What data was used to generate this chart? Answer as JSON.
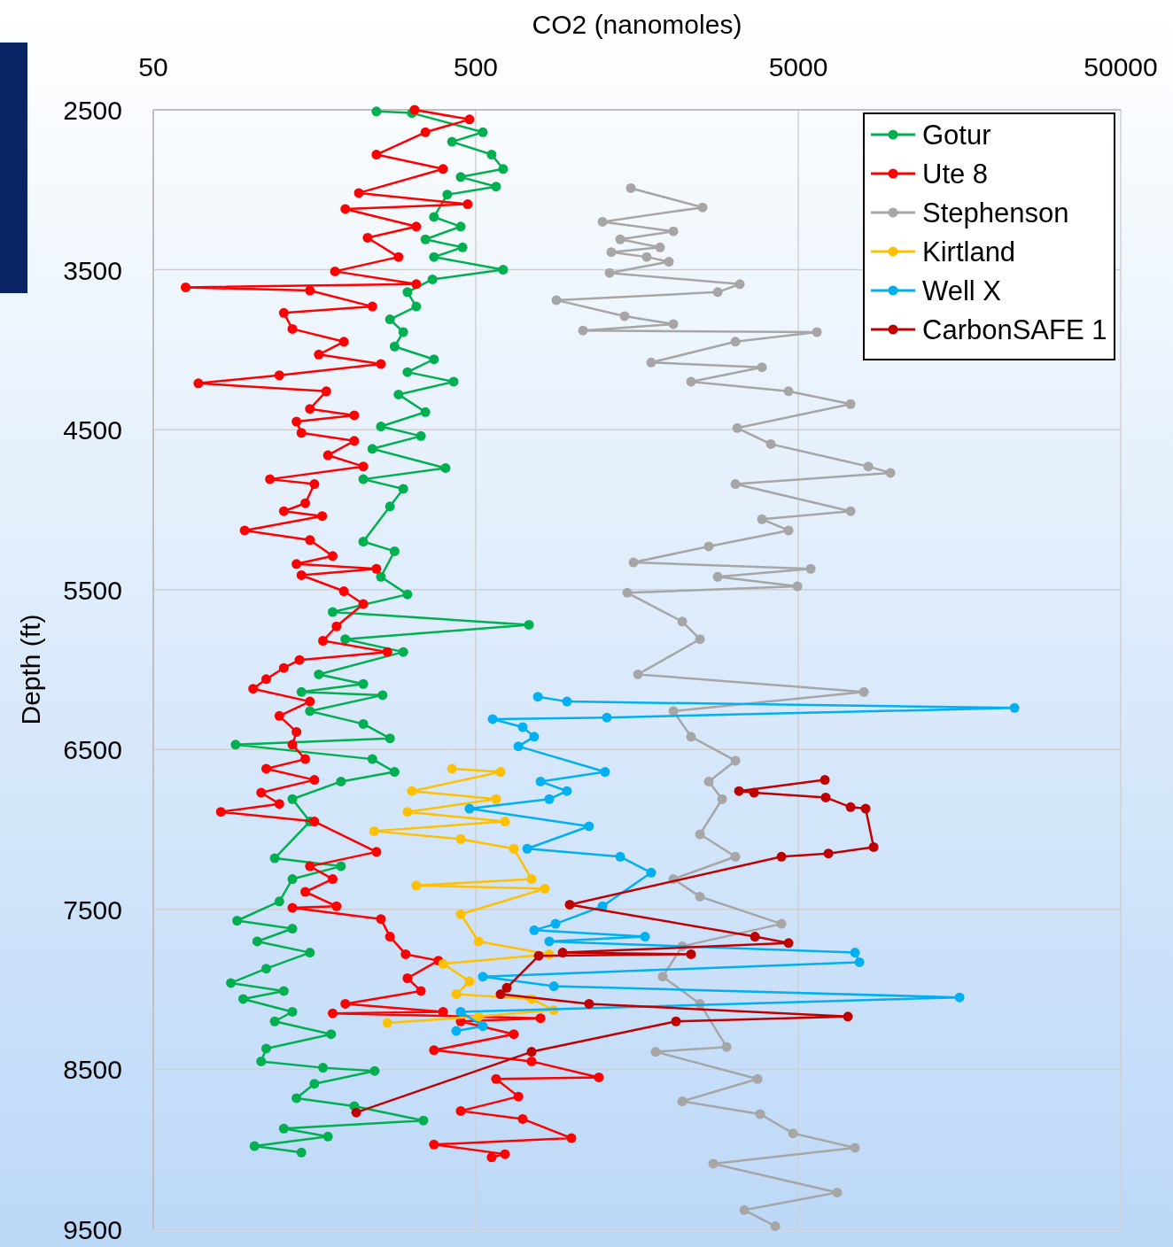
{
  "chart_data": {
    "type": "line",
    "xlabel": "CO2 (nanomoles)",
    "ylabel": "Depth (ft)",
    "log": "x",
    "xlim": [
      50,
      50000
    ],
    "xticks": [
      50,
      500,
      5000,
      50000
    ],
    "ylim": [
      9500,
      2500
    ],
    "yticks": [
      2500,
      3500,
      4500,
      5500,
      6500,
      7500,
      8500,
      9500
    ],
    "grid": true,
    "legend": "top right",
    "marker": "circle",
    "line_style": "solid",
    "series": [
      {
        "name": "Gotur",
        "color": "#00b050",
        "x": [
          246,
          317,
          526,
          422,
          560,
          608,
          449,
          578,
          408,
          371,
          449,
          349,
          455,
          371,
          608,
          367,
          307,
          327,
          271,
          298,
          280,
          371,
          307,
          427,
          288,
          349,
          254,
          338,
          239,
          403,
          224,
          298,
          271,
          224,
          280,
          254,
          307,
          180,
          731,
          197,
          298,
          163,
          224,
          144,
          257,
          153,
          224,
          271,
          90,
          239,
          280,
          191,
          135,
          153,
          119,
          191,
          135,
          123,
          91,
          135,
          105,
          153,
          112,
          87,
          127,
          95,
          135,
          119,
          178,
          112,
          108,
          168,
          243,
          158,
          139,
          210,
          344,
          127,
          174,
          103,
          144
        ],
        "values": [
          2510,
          2520,
          2640,
          2700,
          2780,
          2870,
          2920,
          2980,
          3030,
          3170,
          3230,
          3310,
          3360,
          3420,
          3500,
          3560,
          3640,
          3730,
          3810,
          3890,
          3980,
          4060,
          4140,
          4200,
          4280,
          4390,
          4480,
          4540,
          4620,
          4740,
          4810,
          4870,
          4980,
          5200,
          5260,
          5420,
          5530,
          5640,
          5720,
          5810,
          5890,
          6030,
          6090,
          6140,
          6160,
          6260,
          6340,
          6430,
          6470,
          6560,
          6640,
          6700,
          6810,
          6950,
          7180,
          7230,
          7310,
          7450,
          7570,
          7620,
          7700,
          7770,
          7870,
          7960,
          8010,
          8060,
          8140,
          8200,
          8280,
          8370,
          8450,
          8490,
          8510,
          8590,
          8680,
          8730,
          8820,
          8870,
          8920,
          8980,
          9020
        ]
      },
      {
        "name": "Ute 8",
        "color": "#ff0000",
        "x": [
          323,
          478,
          349,
          246,
          396,
          217,
          472,
          197,
          327,
          231,
          288,
          183,
          327,
          63,
          153,
          239,
          127,
          135,
          195,
          163,
          254,
          123,
          69,
          172,
          153,
          210,
          139,
          144,
          210,
          174,
          224,
          115,
          158,
          148,
          127,
          167,
          96,
          153,
          180,
          139,
          246,
          144,
          195,
          224,
          185,
          168,
          266,
          142,
          127,
          112,
          102,
          153,
          123,
          139,
          135,
          148,
          112,
          158,
          108,
          123,
          81,
          158,
          246,
          153,
          180,
          148,
          185,
          135,
          254,
          271,
          303,
          383,
          307,
          338,
          197,
          396,
          180,
          794,
          449,
          656,
          371,
          745,
          1204,
          578,
          678,
          449,
          699,
          990,
          371,
          616,
          560
        ],
        "values": [
          2500,
          2560,
          2640,
          2780,
          2870,
          3020,
          3090,
          3120,
          3230,
          3300,
          3420,
          3510,
          3590,
          3610,
          3630,
          3730,
          3770,
          3870,
          3950,
          4030,
          4090,
          4160,
          4210,
          4260,
          4370,
          4410,
          4450,
          4520,
          4570,
          4660,
          4730,
          4810,
          4840,
          4960,
          5010,
          5040,
          5130,
          5190,
          5290,
          5340,
          5370,
          5410,
          5510,
          5590,
          5730,
          5820,
          5890,
          5940,
          5990,
          6060,
          6120,
          6200,
          6290,
          6390,
          6470,
          6560,
          6620,
          6690,
          6770,
          6840,
          6890,
          6950,
          7140,
          7230,
          7310,
          7390,
          7480,
          7490,
          7560,
          7670,
          7780,
          7820,
          7930,
          8010,
          8090,
          8140,
          8150,
          8180,
          8200,
          8280,
          8380,
          8450,
          8550,
          8560,
          8670,
          8760,
          8810,
          8930,
          8970,
          9030,
          9050
        ]
      },
      {
        "name": "Stephenson",
        "color": "#a6a6a6",
        "x": [
          1513,
          2526,
          1236,
          2050,
          1403,
          1864,
          1316,
          1695,
          1986,
          1300,
          3295,
          2813,
          889,
          1447,
          2050,
          1075,
          5713,
          3193,
          1750,
          3860,
          2326,
          4666,
          7266,
          3234,
          4111,
          8246,
          9659,
          3193,
          7266,
          3860,
          4666,
          2640,
          1542,
          5466,
          2813,
          4971,
          1475,
          2184,
          2479,
          1592,
          7990,
          2050,
          2326,
          3193,
          2640,
          2904,
          2479,
          3193,
          2050,
          2479,
          4436,
          2184,
          1900,
          2479,
          2998,
          1806,
          3741,
          2184,
          3811,
          4816,
          7499,
          2725,
          6607,
          3401,
          4244
        ],
        "values": [
          2990,
          3110,
          3200,
          3260,
          3310,
          3360,
          3390,
          3420,
          3450,
          3520,
          3590,
          3640,
          3690,
          3790,
          3840,
          3880,
          3890,
          3950,
          4080,
          4110,
          4200,
          4260,
          4340,
          4490,
          4590,
          4730,
          4770,
          4840,
          5010,
          5060,
          5130,
          5230,
          5330,
          5370,
          5420,
          5480,
          5520,
          5700,
          5810,
          6030,
          6140,
          6260,
          6420,
          6570,
          6700,
          6810,
          7030,
          7170,
          7310,
          7420,
          7590,
          7730,
          7920,
          8090,
          8360,
          8390,
          8560,
          8700,
          8780,
          8900,
          8990,
          9090,
          9270,
          9380,
          9480
        ]
      },
      {
        "name": "Kirtland",
        "color": "#ffc000",
        "x": [
          422,
          597,
          317,
          578,
          307,
          616,
          242,
          449,
          656,
          745,
          327,
          819,
          449,
          510,
          845,
          396,
          478,
          435,
          745,
          873,
          510,
          266
        ],
        "values": [
          6620,
          6640,
          6760,
          6810,
          6890,
          6950,
          7010,
          7060,
          7120,
          7310,
          7350,
          7370,
          7530,
          7700,
          7780,
          7840,
          7950,
          8030,
          8060,
          8130,
          8170,
          8210
        ]
      },
      {
        "name": "Well X",
        "color": "#00b0f0",
        "x": [
          779,
          959,
          23420,
          1275,
          564,
          699,
          759,
          678,
          1259,
          794,
          959,
          845,
          478,
          1123,
          722,
          1403,
          1750,
          1236,
          884,
          759,
          1674,
          845,
          7499,
          7740,
          526,
          873,
          15820,
          449,
          526,
          435
        ],
        "values": [
          6170,
          6200,
          6240,
          6300,
          6310,
          6360,
          6420,
          6480,
          6640,
          6700,
          6760,
          6810,
          6870,
          6980,
          7120,
          7170,
          7270,
          7480,
          7590,
          7630,
          7670,
          7700,
          7770,
          7830,
          7920,
          7980,
          8050,
          8140,
          8230,
          8260
        ]
      },
      {
        "name": "CarbonSAFE 1",
        "color": "#c00000",
        "x": [
          6047,
          3275,
          3647,
          6085,
          7266,
          8090,
          8565,
          6202,
          4436,
          978,
          3670,
          4666,
          930,
          2326,
          784,
          624,
          597,
          1123,
          7129,
          2089,
          745,
          213
        ],
        "values": [
          6690,
          6760,
          6770,
          6800,
          6860,
          6870,
          7110,
          7150,
          7170,
          7470,
          7670,
          7710,
          7770,
          7780,
          7790,
          7990,
          8030,
          8090,
          8170,
          8200,
          8390,
          8770
        ]
      }
    ]
  }
}
